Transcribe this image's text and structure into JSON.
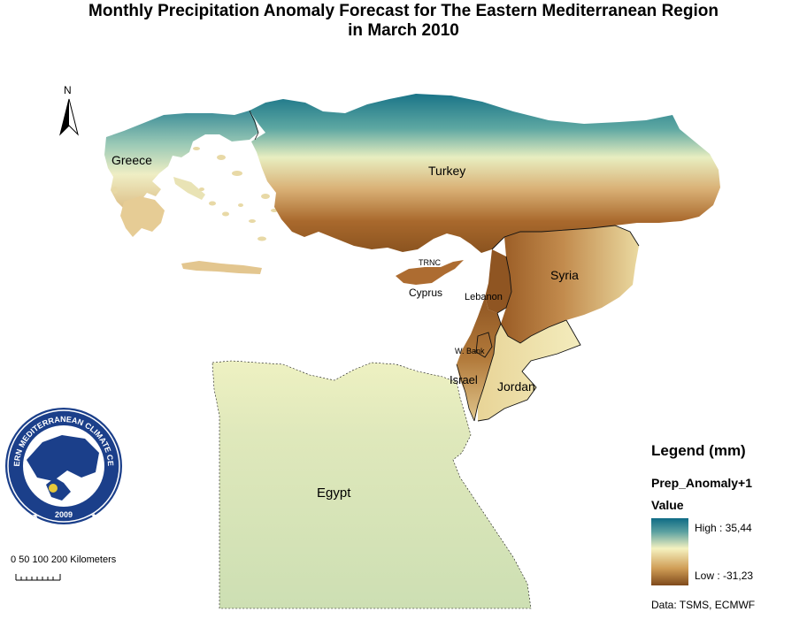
{
  "title": {
    "line1": "Monthly Precipitation Anomaly Forecast for  The Eastern Mediterranean Region",
    "line2": "in March 2010"
  },
  "north_arrow": {
    "label": "N"
  },
  "map_labels": {
    "greece": "Greece",
    "turkey": "Turkey",
    "trnc": "TRNC",
    "cyprus": "Cyprus",
    "syria": "Syria",
    "lebanon": "Lebanon",
    "west_bank": "W. Bank",
    "israel": "Israel",
    "jordan": "Jordan",
    "egypt": "Egypt"
  },
  "logo": {
    "ring_text": "EASTERN MEDITERRANEAN CLIMATE CENTRE",
    "year": "2009"
  },
  "scale_bar": {
    "label": "0 50 100    200 Kilometers"
  },
  "legend": {
    "heading": "Legend (mm)",
    "field": "Prep_Anomaly+1",
    "value_label": "Value",
    "high_label": "High : 35,44",
    "low_label": "Low : -31,23",
    "high_value": 35.44,
    "low_value": -31.23,
    "colors": {
      "high": "#0e6b85",
      "mid": "#f5f2c0",
      "low": "#7f4a1b",
      "egypt_fill": "#d6e3b7"
    }
  },
  "credit": "Data:  TSMS, ECMWF"
}
